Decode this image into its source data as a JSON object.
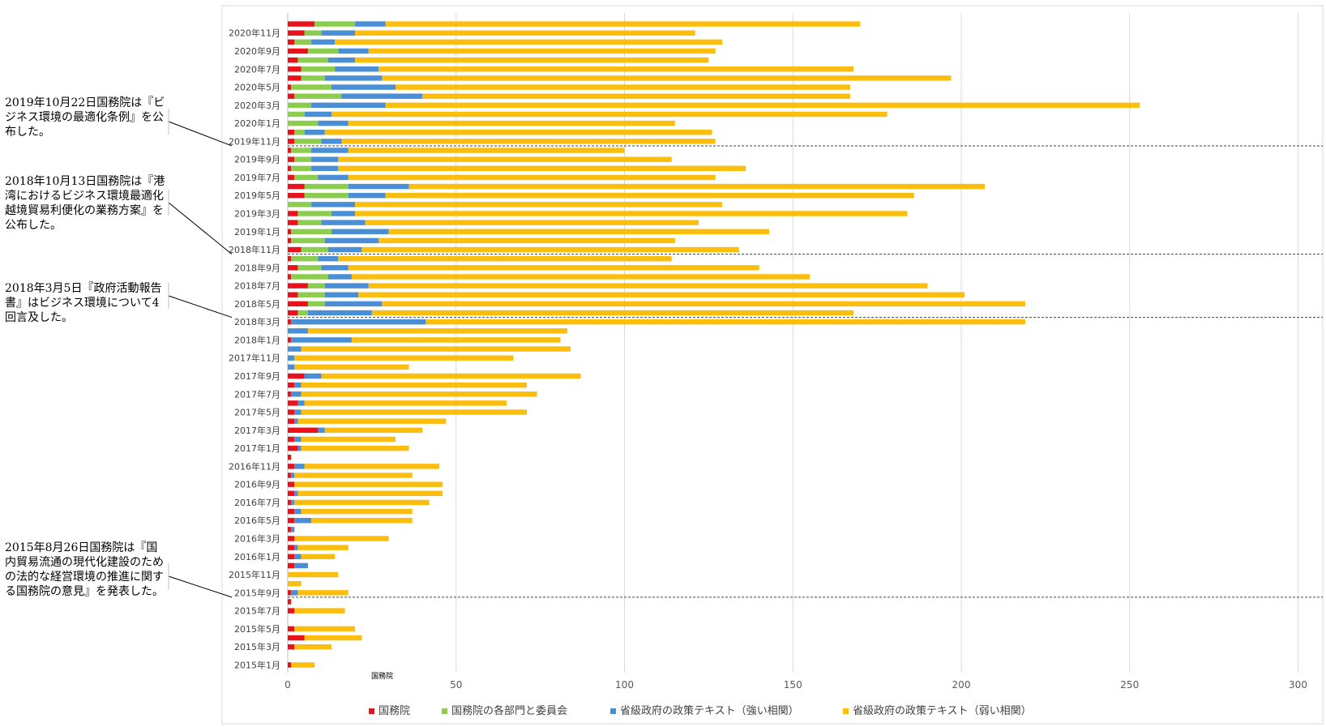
{
  "chart_data": {
    "type": "bar",
    "orientation": "horizontal",
    "stacked": true,
    "xlim": [
      0,
      300
    ],
    "x_ticks": [
      0,
      50,
      100,
      150,
      200,
      250,
      300
    ],
    "grid": true,
    "legend_position": "bottom",
    "axis_note": "国務院",
    "colors": [
      "#e8121d",
      "#8ccd4f",
      "#4a8fd5",
      "#fbbe0f"
    ],
    "categories": [
      "2015年1月",
      "2015年2月",
      "2015年3月",
      "2015年4月",
      "2015年5月",
      "2015年6月",
      "2015年7月",
      "2015年8月",
      "2015年9月",
      "2015年10月",
      "2015年11月",
      "2015年12月",
      "2016年1月",
      "2016年2月",
      "2016年3月",
      "2016年4月",
      "2016年5月",
      "2016年6月",
      "2016年7月",
      "2016年8月",
      "2016年9月",
      "2016年10月",
      "2016年11月",
      "2016年12月",
      "2017年1月",
      "2017年2月",
      "2017年3月",
      "2017年4月",
      "2017年5月",
      "2017年6月",
      "2017年7月",
      "2017年8月",
      "2017年9月",
      "2017年10月",
      "2017年11月",
      "2017年12月",
      "2018年1月",
      "2018年2月",
      "2018年3月",
      "2018年4月",
      "2018年5月",
      "2018年6月",
      "2018年7月",
      "2018年8月",
      "2018年9月",
      "2018年10月",
      "2018年11月",
      "2018年12月",
      "2019年1月",
      "2019年2月",
      "2019年3月",
      "2019年4月",
      "2019年5月",
      "2019年6月",
      "2019年7月",
      "2019年8月",
      "2019年9月",
      "2019年10月",
      "2019年11月",
      "2019年12月",
      "2020年1月",
      "2020年2月",
      "2020年3月",
      "2020年4月",
      "2020年5月",
      "2020年6月",
      "2020年7月",
      "2020年8月",
      "2020年9月",
      "2020年10月",
      "2020年11月",
      "2020年12月"
    ],
    "visible_category_labels": [
      "2015年1月",
      "2015年3月",
      "2015年5月",
      "2015年7月",
      "2015年9月",
      "2015年11月",
      "2016年1月",
      "2016年3月",
      "2016年5月",
      "2016年7月",
      "2016年9月",
      "2016年11月",
      "2017年1月",
      "2017年3月",
      "2017年5月",
      "2017年7月",
      "2017年9月",
      "2017年11月",
      "2018年1月",
      "2018年3月",
      "2018年5月",
      "2018年7月",
      "2018年9月",
      "2018年11月",
      "2019年1月",
      "2019年3月",
      "2019年5月",
      "2019年7月",
      "2019年9月",
      "2019年11月",
      "2020年1月",
      "2020年3月",
      "2020年5月",
      "2020年7月",
      "2020年9月",
      "2020年11月"
    ],
    "series": [
      {
        "name": "国務院",
        "values": [
          1,
          0,
          2,
          5,
          2,
          0,
          2,
          1,
          1,
          0,
          0,
          2,
          2,
          2,
          2,
          1,
          2,
          2,
          1,
          2,
          2,
          1,
          2,
          1,
          3,
          2,
          9,
          2,
          2,
          3,
          1,
          2,
          5,
          0,
          0,
          0,
          1,
          0,
          1,
          3,
          6,
          3,
          6,
          1,
          3,
          1,
          4,
          1,
          1,
          3,
          3,
          0,
          5,
          5,
          2,
          1,
          2,
          1,
          2,
          2,
          0,
          0,
          0,
          2,
          1,
          4,
          4,
          3,
          6,
          2,
          5,
          8
        ]
      },
      {
        "name": "国務院の各部門と委員会",
        "values": [
          0,
          0,
          0,
          0,
          0,
          0,
          0,
          0,
          0,
          0,
          0,
          0,
          0,
          0,
          0,
          0,
          0,
          0,
          0,
          0,
          0,
          0,
          0,
          0,
          0,
          0,
          0,
          0,
          0,
          0,
          0,
          0,
          0,
          0,
          0,
          0,
          0,
          0,
          0,
          3,
          5,
          8,
          5,
          11,
          7,
          8,
          8,
          10,
          12,
          7,
          10,
          7,
          13,
          13,
          7,
          6,
          5,
          6,
          8,
          3,
          9,
          5,
          7,
          14,
          12,
          7,
          10,
          9,
          9,
          5,
          5,
          12
        ]
      },
      {
        "name": "省級政府の政策テキスト（強い相関）",
        "values": [
          0,
          0,
          0,
          0,
          0,
          0,
          0,
          0,
          2,
          0,
          0,
          4,
          2,
          1,
          0,
          1,
          5,
          2,
          1,
          1,
          0,
          1,
          3,
          0,
          1,
          2,
          2,
          1,
          2,
          2,
          3,
          2,
          5,
          2,
          2,
          4,
          18,
          6,
          40,
          19,
          17,
          10,
          13,
          7,
          8,
          6,
          10,
          16,
          17,
          13,
          7,
          13,
          11,
          18,
          9,
          8,
          8,
          11,
          6,
          6,
          9,
          8,
          22,
          24,
          19,
          17,
          13,
          8,
          9,
          7,
          10,
          9
        ]
      },
      {
        "name": "省級政府の政策テキスト（弱い相関）",
        "values": [
          7,
          0,
          11,
          17,
          18,
          0,
          15,
          0,
          15,
          4,
          15,
          0,
          10,
          15,
          28,
          0,
          30,
          33,
          40,
          43,
          44,
          35,
          40,
          0,
          32,
          28,
          29,
          44,
          67,
          60,
          70,
          67,
          77,
          34,
          65,
          80,
          62,
          77,
          178,
          143,
          191,
          180,
          166,
          136,
          122,
          99,
          112,
          88,
          113,
          99,
          164,
          109,
          157,
          171,
          109,
          121,
          99,
          82,
          111,
          115,
          97,
          165,
          224,
          127,
          135,
          169,
          141,
          105,
          103,
          115,
          101,
          141
        ]
      }
    ]
  },
  "legend": [
    {
      "label": "国務院",
      "color": "#e8121d"
    },
    {
      "label": "国務院の各部門と委員会",
      "color": "#8ccd4f"
    },
    {
      "label": "省級政府の政策テキスト（強い相関）",
      "color": "#4a8fd5"
    },
    {
      "label": "省級政府の政策テキスト（弱い相関）",
      "color": "#fbbe0f"
    }
  ],
  "annotations": [
    {
      "text": "2019年10月22日国務院は『ビジネス環境の最適化条例』を公布した。",
      "target": "2019年10月"
    },
    {
      "text": "2018年10月13日国務院は『港湾におけるビジネス環境最適化　越境貿易利便化の業務方案』を公布した。",
      "target": "2018年10月"
    },
    {
      "text": "2018年3月5日『政府活動報告書』はビジネス環境について4回言及した。",
      "target": "2018年3月"
    },
    {
      "text": "2015年8月26日国務院は『国内貿易流通の現代化建設のための法的な経営環境の推進に関する国務院の意見』を発表した。",
      "target": "2015年8月"
    }
  ]
}
